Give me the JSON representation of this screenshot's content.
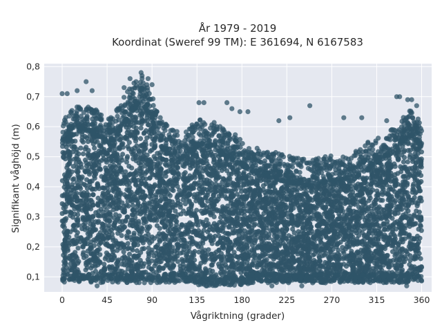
{
  "chart_data": {
    "type": "scatter",
    "title_line1": "År 1979 - 2019",
    "title_line2": "Koordinat (Sweref 99 TM): E 361694, N 6167583",
    "xlabel": "Vågriktning (grader)",
    "ylabel": "Signifikant våghöjd (m)",
    "xlim": [
      -18,
      370
    ],
    "ylim": [
      0.05,
      0.81
    ],
    "xticks": [
      0,
      45,
      90,
      135,
      180,
      225,
      270,
      315,
      360
    ],
    "xtick_labels": [
      "0",
      "45",
      "90",
      "135",
      "180",
      "225",
      "270",
      "315",
      "360"
    ],
    "yticks": [
      0.1,
      0.2,
      0.3,
      0.4,
      0.5,
      0.6,
      0.7,
      0.8
    ],
    "ytick_labels": [
      "0,1",
      "0,2",
      "0,3",
      "0,4",
      "0,5",
      "0,6",
      "0,7",
      "0,8"
    ],
    "grid": true,
    "marker_color": "#2f5468",
    "plot_background": "#e5e8f0",
    "envelope": {
      "x": [
        0,
        10,
        20,
        30,
        40,
        50,
        60,
        70,
        80,
        90,
        100,
        110,
        120,
        130,
        140,
        150,
        160,
        170,
        180,
        190,
        200,
        210,
        220,
        230,
        240,
        250,
        260,
        270,
        280,
        290,
        300,
        310,
        320,
        330,
        340,
        350,
        360
      ],
      "y_max": [
        0.62,
        0.66,
        0.68,
        0.67,
        0.64,
        0.63,
        0.69,
        0.74,
        0.77,
        0.71,
        0.62,
        0.59,
        0.58,
        0.61,
        0.63,
        0.62,
        0.6,
        0.58,
        0.56,
        0.54,
        0.53,
        0.52,
        0.51,
        0.5,
        0.5,
        0.49,
        0.5,
        0.51,
        0.5,
        0.51,
        0.53,
        0.56,
        0.58,
        0.6,
        0.63,
        0.66,
        0.62
      ],
      "y_min": [
        0.08,
        0.08,
        0.08,
        0.08,
        0.08,
        0.08,
        0.08,
        0.08,
        0.08,
        0.08,
        0.08,
        0.08,
        0.08,
        0.08,
        0.07,
        0.07,
        0.07,
        0.07,
        0.07,
        0.08,
        0.08,
        0.08,
        0.08,
        0.08,
        0.08,
        0.08,
        0.08,
        0.08,
        0.08,
        0.08,
        0.08,
        0.08,
        0.08,
        0.08,
        0.08,
        0.08,
        0.08
      ]
    },
    "outliers": [
      {
        "x": 0,
        "y": 0.71
      },
      {
        "x": 5,
        "y": 0.71
      },
      {
        "x": 15,
        "y": 0.72
      },
      {
        "x": 24,
        "y": 0.75
      },
      {
        "x": 30,
        "y": 0.72
      },
      {
        "x": 62,
        "y": 0.73
      },
      {
        "x": 68,
        "y": 0.76
      },
      {
        "x": 74,
        "y": 0.75
      },
      {
        "x": 79,
        "y": 0.78
      },
      {
        "x": 80,
        "y": 0.77
      },
      {
        "x": 86,
        "y": 0.76
      },
      {
        "x": 90,
        "y": 0.74
      },
      {
        "x": 137,
        "y": 0.68
      },
      {
        "x": 142,
        "y": 0.68
      },
      {
        "x": 165,
        "y": 0.68
      },
      {
        "x": 170,
        "y": 0.66
      },
      {
        "x": 178,
        "y": 0.65
      },
      {
        "x": 186,
        "y": 0.65
      },
      {
        "x": 217,
        "y": 0.62
      },
      {
        "x": 228,
        "y": 0.63
      },
      {
        "x": 248,
        "y": 0.67
      },
      {
        "x": 282,
        "y": 0.63
      },
      {
        "x": 300,
        "y": 0.63
      },
      {
        "x": 325,
        "y": 0.62
      },
      {
        "x": 335,
        "y": 0.7
      },
      {
        "x": 338,
        "y": 0.7
      },
      {
        "x": 346,
        "y": 0.69
      },
      {
        "x": 350,
        "y": 0.69
      },
      {
        "x": 355,
        "y": 0.67
      },
      {
        "x": 35,
        "y": 0.07
      },
      {
        "x": 145,
        "y": 0.07
      },
      {
        "x": 210,
        "y": 0.07
      },
      {
        "x": 240,
        "y": 0.07
      },
      {
        "x": 345,
        "y": 0.07
      }
    ]
  }
}
